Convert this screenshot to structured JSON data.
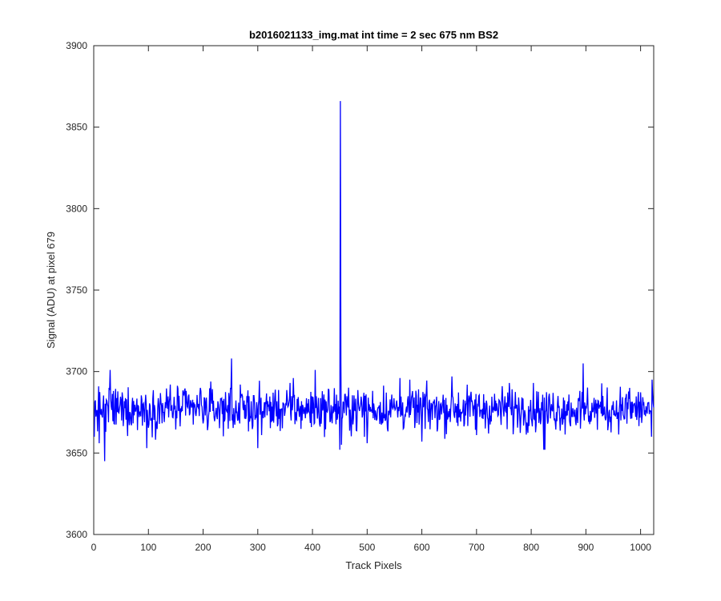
{
  "chart_data": {
    "type": "line",
    "title": "b2016021133_img.mat int time = 2 sec  675 nm BS2",
    "xlabel": "Track Pixels",
    "ylabel": "Signal (ADU) at pixel 679",
    "xlim": [
      0,
      1024
    ],
    "ylim": [
      3600,
      3900
    ],
    "xticks": [
      0,
      100,
      200,
      300,
      400,
      500,
      600,
      700,
      800,
      900,
      1000
    ],
    "yticks": [
      3600,
      3650,
      3700,
      3750,
      3800,
      3850,
      3900
    ],
    "grid": false,
    "legend": "none",
    "series": [
      {
        "color": "#0000ff",
        "baseline": 3677,
        "noise_amplitude": 11,
        "x": [
          1,
          5,
          10,
          15,
          20,
          22,
          25,
          28,
          30,
          60,
          97,
          140,
          195,
          250,
          252,
          253,
          300,
          365,
          405,
          450,
          451,
          452,
          453,
          455,
          500,
          560,
          600,
          655,
          700,
          760,
          823,
          825,
          830,
          870,
          890,
          895,
          897,
          940,
          980,
          1020,
          1024
        ],
        "y": [
          3660,
          3676,
          3656,
          3673,
          3645,
          3663,
          3680,
          3690,
          3701,
          3683,
          3653,
          3692,
          3690,
          3690,
          3708,
          3670,
          3653,
          3696,
          3701,
          3652,
          3866,
          3705,
          3655,
          3672,
          3656,
          3696,
          3657,
          3697,
          3661,
          3693,
          3652,
          3652,
          3668,
          3670,
          3665,
          3705,
          3670,
          3664,
          3690,
          3660,
          3678
        ]
      }
    ]
  }
}
